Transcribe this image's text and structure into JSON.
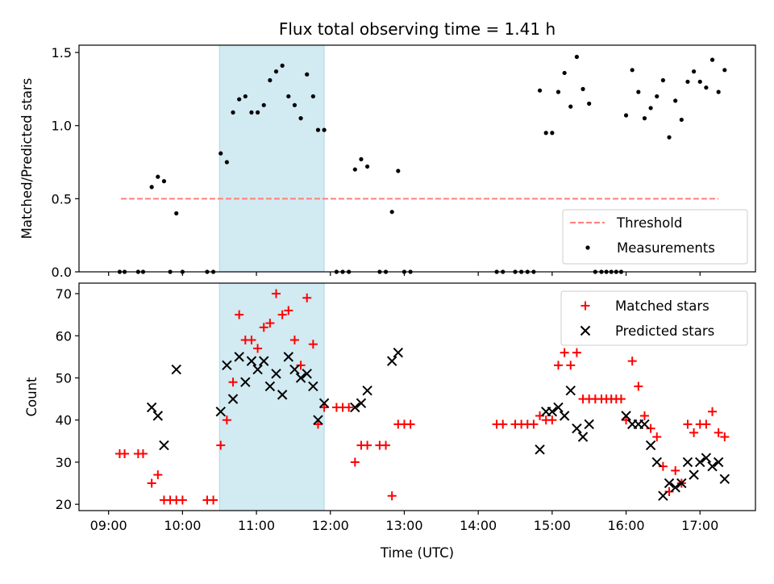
{
  "figure": {
    "title": "Flux total observing time = 1.41 h",
    "xlabel": "Time (UTC)",
    "x_ticks": [
      "09:00",
      "10:00",
      "11:00",
      "12:00",
      "13:00",
      "14:00",
      "15:00",
      "16:00",
      "17:00"
    ],
    "shaded_interval": {
      "start": "10:30",
      "end": "11:55",
      "color": "#add8e6"
    }
  },
  "chart_data": [
    {
      "type": "scatter",
      "ylabel": "Matched/Predicted stars",
      "ylim": [
        0,
        1.55
      ],
      "y_ticks": [
        "0.0",
        "0.5",
        "1.0",
        "1.5"
      ],
      "legend_position": "lower-right",
      "threshold": {
        "name": "Threshold",
        "value": 0.5,
        "x_start": "09:10",
        "x_end": "17:15",
        "color": "#ff7f7f",
        "style": "dashed"
      },
      "measurements": {
        "name": "Measurements",
        "color": "#000000",
        "points": [
          [
            "09:09",
            0
          ],
          [
            "09:13",
            0
          ],
          [
            "09:24",
            0
          ],
          [
            "09:28",
            0
          ],
          [
            "09:35",
            0.58
          ],
          [
            "09:40",
            0.65
          ],
          [
            "09:45",
            0.62
          ],
          [
            "09:50",
            0
          ],
          [
            "09:55",
            0.4
          ],
          [
            "10:00",
            0
          ],
          [
            "10:20",
            0
          ],
          [
            "10:25",
            0
          ],
          [
            "10:31",
            0.81
          ],
          [
            "10:36",
            0.75
          ],
          [
            "10:41",
            1.09
          ],
          [
            "10:46",
            1.18
          ],
          [
            "10:51",
            1.2
          ],
          [
            "10:56",
            1.09
          ],
          [
            "11:01",
            1.09
          ],
          [
            "11:06",
            1.14
          ],
          [
            "11:11",
            1.31
          ],
          [
            "11:16",
            1.37
          ],
          [
            "11:21",
            1.41
          ],
          [
            "11:26",
            1.2
          ],
          [
            "11:31",
            1.14
          ],
          [
            "11:36",
            1.05
          ],
          [
            "11:41",
            1.35
          ],
          [
            "11:46",
            1.2
          ],
          [
            "11:50",
            0.97
          ],
          [
            "11:55",
            0.97
          ],
          [
            "12:05",
            0
          ],
          [
            "12:10",
            0
          ],
          [
            "12:15",
            0
          ],
          [
            "12:20",
            0.7
          ],
          [
            "12:25",
            0.77
          ],
          [
            "12:30",
            0.72
          ],
          [
            "12:40",
            0
          ],
          [
            "12:45",
            0
          ],
          [
            "12:50",
            0.41
          ],
          [
            "12:55",
            0.69
          ],
          [
            "13:00",
            0
          ],
          [
            "13:05",
            0
          ],
          [
            "14:15",
            0
          ],
          [
            "14:20",
            0
          ],
          [
            "14:30",
            0
          ],
          [
            "14:35",
            0
          ],
          [
            "14:40",
            0
          ],
          [
            "14:45",
            0
          ],
          [
            "14:50",
            1.24
          ],
          [
            "14:55",
            0.95
          ],
          [
            "15:00",
            0.95
          ],
          [
            "15:05",
            1.23
          ],
          [
            "15:10",
            1.36
          ],
          [
            "15:15",
            1.13
          ],
          [
            "15:20",
            1.47
          ],
          [
            "15:25",
            1.25
          ],
          [
            "15:30",
            1.15
          ],
          [
            "15:35",
            0
          ],
          [
            "15:40",
            0
          ],
          [
            "15:44",
            0
          ],
          [
            "15:48",
            0
          ],
          [
            "15:52",
            0
          ],
          [
            "15:56",
            0
          ],
          [
            "16:00",
            1.07
          ],
          [
            "16:05",
            1.38
          ],
          [
            "16:10",
            1.23
          ],
          [
            "16:15",
            1.05
          ],
          [
            "16:20",
            1.12
          ],
          [
            "16:25",
            1.2
          ],
          [
            "16:30",
            1.31
          ],
          [
            "16:35",
            0.92
          ],
          [
            "16:40",
            1.17
          ],
          [
            "16:45",
            1.04
          ],
          [
            "16:50",
            1.3
          ],
          [
            "16:55",
            1.37
          ],
          [
            "17:00",
            1.3
          ],
          [
            "17:05",
            1.26
          ],
          [
            "17:10",
            1.45
          ],
          [
            "17:15",
            1.23
          ],
          [
            "17:20",
            1.38
          ]
        ]
      }
    },
    {
      "type": "scatter",
      "ylabel": "Count",
      "ylim": [
        18.5,
        72.5
      ],
      "y_ticks": [
        "20",
        "30",
        "40",
        "50",
        "60",
        "70"
      ],
      "legend_position": "upper-right",
      "series": [
        {
          "name": "Matched stars",
          "marker": "plus",
          "color": "#ff0000",
          "points": [
            [
              "09:09",
              32
            ],
            [
              "09:13",
              32
            ],
            [
              "09:24",
              32
            ],
            [
              "09:28",
              32
            ],
            [
              "09:35",
              25
            ],
            [
              "09:40",
              27
            ],
            [
              "09:45",
              21
            ],
            [
              "09:50",
              21
            ],
            [
              "09:55",
              21
            ],
            [
              "10:00",
              21
            ],
            [
              "10:20",
              21
            ],
            [
              "10:25",
              21
            ],
            [
              "10:31",
              34
            ],
            [
              "10:36",
              40
            ],
            [
              "10:41",
              49
            ],
            [
              "10:46",
              65
            ],
            [
              "10:51",
              59
            ],
            [
              "10:56",
              59
            ],
            [
              "11:01",
              57
            ],
            [
              "11:06",
              62
            ],
            [
              "11:11",
              63
            ],
            [
              "11:16",
              70
            ],
            [
              "11:21",
              65
            ],
            [
              "11:26",
              66
            ],
            [
              "11:31",
              59
            ],
            [
              "11:36",
              53
            ],
            [
              "11:41",
              69
            ],
            [
              "11:46",
              58
            ],
            [
              "11:50",
              39
            ],
            [
              "11:55",
              43
            ],
            [
              "12:05",
              43
            ],
            [
              "12:10",
              43
            ],
            [
              "12:15",
              43
            ],
            [
              "12:20",
              30
            ],
            [
              "12:25",
              34
            ],
            [
              "12:30",
              34
            ],
            [
              "12:40",
              34
            ],
            [
              "12:45",
              34
            ],
            [
              "12:50",
              22
            ],
            [
              "12:55",
              39
            ],
            [
              "13:00",
              39
            ],
            [
              "13:05",
              39
            ],
            [
              "14:15",
              39
            ],
            [
              "14:20",
              39
            ],
            [
              "14:30",
              39
            ],
            [
              "14:35",
              39
            ],
            [
              "14:40",
              39
            ],
            [
              "14:45",
              39
            ],
            [
              "14:50",
              41
            ],
            [
              "14:55",
              40
            ],
            [
              "15:00",
              40
            ],
            [
              "15:05",
              53
            ],
            [
              "15:10",
              56
            ],
            [
              "15:15",
              53
            ],
            [
              "15:20",
              56
            ],
            [
              "15:25",
              45
            ],
            [
              "15:30",
              45
            ],
            [
              "15:35",
              45
            ],
            [
              "15:40",
              45
            ],
            [
              "15:44",
              45
            ],
            [
              "15:48",
              45
            ],
            [
              "15:52",
              45
            ],
            [
              "15:56",
              45
            ],
            [
              "16:00",
              40
            ],
            [
              "16:05",
              54
            ],
            [
              "16:10",
              48
            ],
            [
              "16:15",
              41
            ],
            [
              "16:20",
              38
            ],
            [
              "16:25",
              36
            ],
            [
              "16:30",
              29
            ],
            [
              "16:35",
              23
            ],
            [
              "16:40",
              28
            ],
            [
              "16:45",
              25
            ],
            [
              "16:50",
              39
            ],
            [
              "16:55",
              37
            ],
            [
              "17:00",
              39
            ],
            [
              "17:05",
              39
            ],
            [
              "17:10",
              42
            ],
            [
              "17:15",
              37
            ],
            [
              "17:20",
              36
            ]
          ]
        },
        {
          "name": "Predicted stars",
          "marker": "x",
          "color": "#000000",
          "points": [
            [
              "09:35",
              43
            ],
            [
              "09:40",
              41
            ],
            [
              "09:45",
              34
            ],
            [
              "09:55",
              52
            ],
            [
              "10:31",
              42
            ],
            [
              "10:36",
              53
            ],
            [
              "10:41",
              45
            ],
            [
              "10:46",
              55
            ],
            [
              "10:51",
              49
            ],
            [
              "10:56",
              54
            ],
            [
              "11:01",
              52
            ],
            [
              "11:06",
              54
            ],
            [
              "11:11",
              48
            ],
            [
              "11:16",
              51
            ],
            [
              "11:21",
              46
            ],
            [
              "11:26",
              55
            ],
            [
              "11:31",
              52
            ],
            [
              "11:36",
              50
            ],
            [
              "11:41",
              51
            ],
            [
              "11:46",
              48
            ],
            [
              "11:50",
              40
            ],
            [
              "11:55",
              44
            ],
            [
              "12:20",
              43
            ],
            [
              "12:25",
              44
            ],
            [
              "12:30",
              47
            ],
            [
              "12:50",
              54
            ],
            [
              "12:55",
              56
            ],
            [
              "14:50",
              33
            ],
            [
              "14:55",
              42
            ],
            [
              "15:00",
              42
            ],
            [
              "15:05",
              43
            ],
            [
              "15:10",
              41
            ],
            [
              "15:15",
              47
            ],
            [
              "15:20",
              38
            ],
            [
              "15:25",
              36
            ],
            [
              "15:30",
              39
            ],
            [
              "16:00",
              41
            ],
            [
              "16:05",
              39
            ],
            [
              "16:10",
              39
            ],
            [
              "16:15",
              39
            ],
            [
              "16:20",
              34
            ],
            [
              "16:25",
              30
            ],
            [
              "16:30",
              22
            ],
            [
              "16:35",
              25
            ],
            [
              "16:40",
              24
            ],
            [
              "16:45",
              25
            ],
            [
              "16:50",
              30
            ],
            [
              "16:55",
              27
            ],
            [
              "17:00",
              30
            ],
            [
              "17:05",
              31
            ],
            [
              "17:10",
              29
            ],
            [
              "17:15",
              30
            ],
            [
              "17:20",
              26
            ]
          ]
        }
      ]
    }
  ]
}
